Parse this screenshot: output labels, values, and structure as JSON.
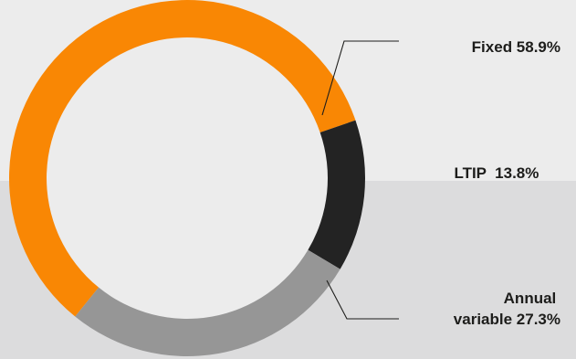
{
  "chart_data": {
    "type": "pie",
    "style": "donut",
    "title": "",
    "start_angle_deg": 219,
    "direction": "clockwise",
    "slices": [
      {
        "label_lines": [
          "Fixed 58.9%"
        ],
        "value": 58.9,
        "color": "#f98704"
      },
      {
        "label_lines": [
          "LTIP  13.8%"
        ],
        "value": 13.8,
        "color": "#232323"
      },
      {
        "label_lines": [
          "Annual",
          "variable 27.3%"
        ],
        "value": 27.3,
        "color": "#969696"
      }
    ]
  },
  "colors": {
    "inner_fill": "#ececec",
    "background_top": "#ececec",
    "background_bottom": "#dcdcdd",
    "leader_line": "#1d1d1b"
  }
}
